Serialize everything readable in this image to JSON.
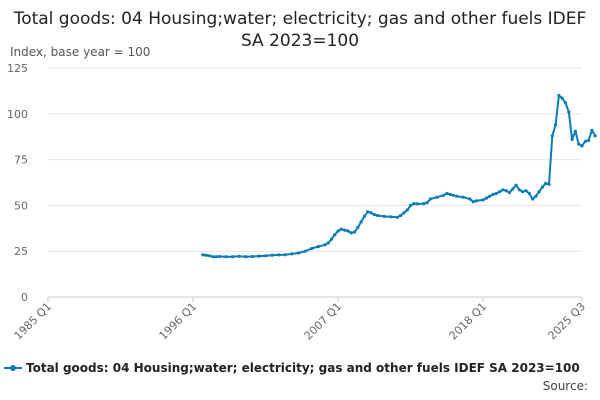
{
  "chart_data": {
    "type": "line",
    "title": "Total goods: 04 Housing;water; electricity; gas and other fuels IDEF SA 2023=100",
    "ylabel": "Index, base year = 100",
    "xlabel": "",
    "ylim": [
      0,
      125
    ],
    "y_ticks": [
      0,
      25,
      50,
      75,
      100,
      125
    ],
    "x_range": [
      1985.0,
      2025.5
    ],
    "x_ticks": [
      {
        "label": "1985 Q1",
        "x": 1985.0
      },
      {
        "label": "1996 Q1",
        "x": 1996.0
      },
      {
        "label": "2007 Q1",
        "x": 2007.0
      },
      {
        "label": "2018 Q1",
        "x": 2018.0
      },
      {
        "label": "2025 Q3",
        "x": 2025.5
      }
    ],
    "grid": true,
    "legend_position": "bottom-left",
    "colors": {
      "series": "#0b7bb7"
    },
    "series": [
      {
        "name": "Total goods: 04 Housing;water; electricity; gas and other fuels IDEF SA 2023=100",
        "points": [
          [
            1996.75,
            23.0
          ],
          [
            1997.0,
            22.8
          ],
          [
            1997.25,
            22.5
          ],
          [
            1997.5,
            22.0
          ],
          [
            1997.75,
            22.0
          ],
          [
            1998.0,
            22.1
          ],
          [
            1998.5,
            22.0
          ],
          [
            1999.0,
            22.0
          ],
          [
            1999.5,
            22.2
          ],
          [
            2000.0,
            22.0
          ],
          [
            2000.5,
            22.1
          ],
          [
            2001.0,
            22.3
          ],
          [
            2001.5,
            22.5
          ],
          [
            2002.0,
            22.8
          ],
          [
            2002.5,
            23.0
          ],
          [
            2003.0,
            23.1
          ],
          [
            2003.5,
            23.5
          ],
          [
            2004.0,
            24.0
          ],
          [
            2004.5,
            25.0
          ],
          [
            2005.0,
            26.5
          ],
          [
            2005.5,
            27.5
          ],
          [
            2006.0,
            28.5
          ],
          [
            2006.25,
            29.5
          ],
          [
            2006.5,
            31.5
          ],
          [
            2006.75,
            34.0
          ],
          [
            2007.0,
            36.0
          ],
          [
            2007.25,
            37.0
          ],
          [
            2007.5,
            36.5
          ],
          [
            2007.75,
            36.0
          ],
          [
            2008.0,
            35.0
          ],
          [
            2008.25,
            35.5
          ],
          [
            2008.5,
            38.0
          ],
          [
            2008.75,
            41.0
          ],
          [
            2009.0,
            44.0
          ],
          [
            2009.25,
            46.5
          ],
          [
            2009.5,
            46.0
          ],
          [
            2009.75,
            45.0
          ],
          [
            2010.0,
            44.5
          ],
          [
            2010.5,
            44.0
          ],
          [
            2011.0,
            43.8
          ],
          [
            2011.5,
            43.5
          ],
          [
            2011.75,
            44.5
          ],
          [
            2012.0,
            46.0
          ],
          [
            2012.25,
            47.5
          ],
          [
            2012.5,
            50.0
          ],
          [
            2012.75,
            51.0
          ],
          [
            2013.0,
            50.8
          ],
          [
            2013.5,
            51.0
          ],
          [
            2013.75,
            51.5
          ],
          [
            2014.0,
            53.5
          ],
          [
            2014.5,
            54.5
          ],
          [
            2015.0,
            55.5
          ],
          [
            2015.25,
            56.5
          ],
          [
            2015.5,
            56.0
          ],
          [
            2015.75,
            55.5
          ],
          [
            2016.0,
            55.0
          ],
          [
            2016.5,
            54.5
          ],
          [
            2017.0,
            53.5
          ],
          [
            2017.25,
            52.0
          ],
          [
            2017.5,
            52.5
          ],
          [
            2018.0,
            53.0
          ],
          [
            2018.25,
            54.0
          ],
          [
            2018.5,
            55.0
          ],
          [
            2018.75,
            56.0
          ],
          [
            2019.0,
            56.5
          ],
          [
            2019.25,
            57.5
          ],
          [
            2019.5,
            58.5
          ],
          [
            2019.75,
            58.0
          ],
          [
            2020.0,
            57.0
          ],
          [
            2020.25,
            59.0
          ],
          [
            2020.5,
            61.0
          ],
          [
            2020.75,
            58.5
          ],
          [
            2021.0,
            57.5
          ],
          [
            2021.25,
            58.0
          ],
          [
            2021.5,
            56.5
          ],
          [
            2021.75,
            53.5
          ],
          [
            2022.0,
            55.0
          ],
          [
            2022.25,
            57.5
          ],
          [
            2022.5,
            60.0
          ],
          [
            2022.75,
            62.0
          ],
          [
            2023.0,
            61.5
          ],
          [
            2023.25,
            88.0
          ],
          [
            2023.5,
            94.0
          ],
          [
            2023.75,
            110.0
          ],
          [
            2024.0,
            108.5
          ],
          [
            2024.25,
            106.0
          ],
          [
            2024.5,
            101.0
          ],
          [
            2024.75,
            86.0
          ],
          [
            2025.0,
            90.5
          ],
          [
            2025.25,
            83.5
          ],
          [
            2025.5,
            82.5
          ],
          [
            2025.75,
            85.0
          ],
          [
            2026.0,
            85.5
          ],
          [
            2026.25,
            91.0
          ],
          [
            2026.5,
            88.0
          ]
        ]
      }
    ]
  },
  "source_label": "Source:"
}
